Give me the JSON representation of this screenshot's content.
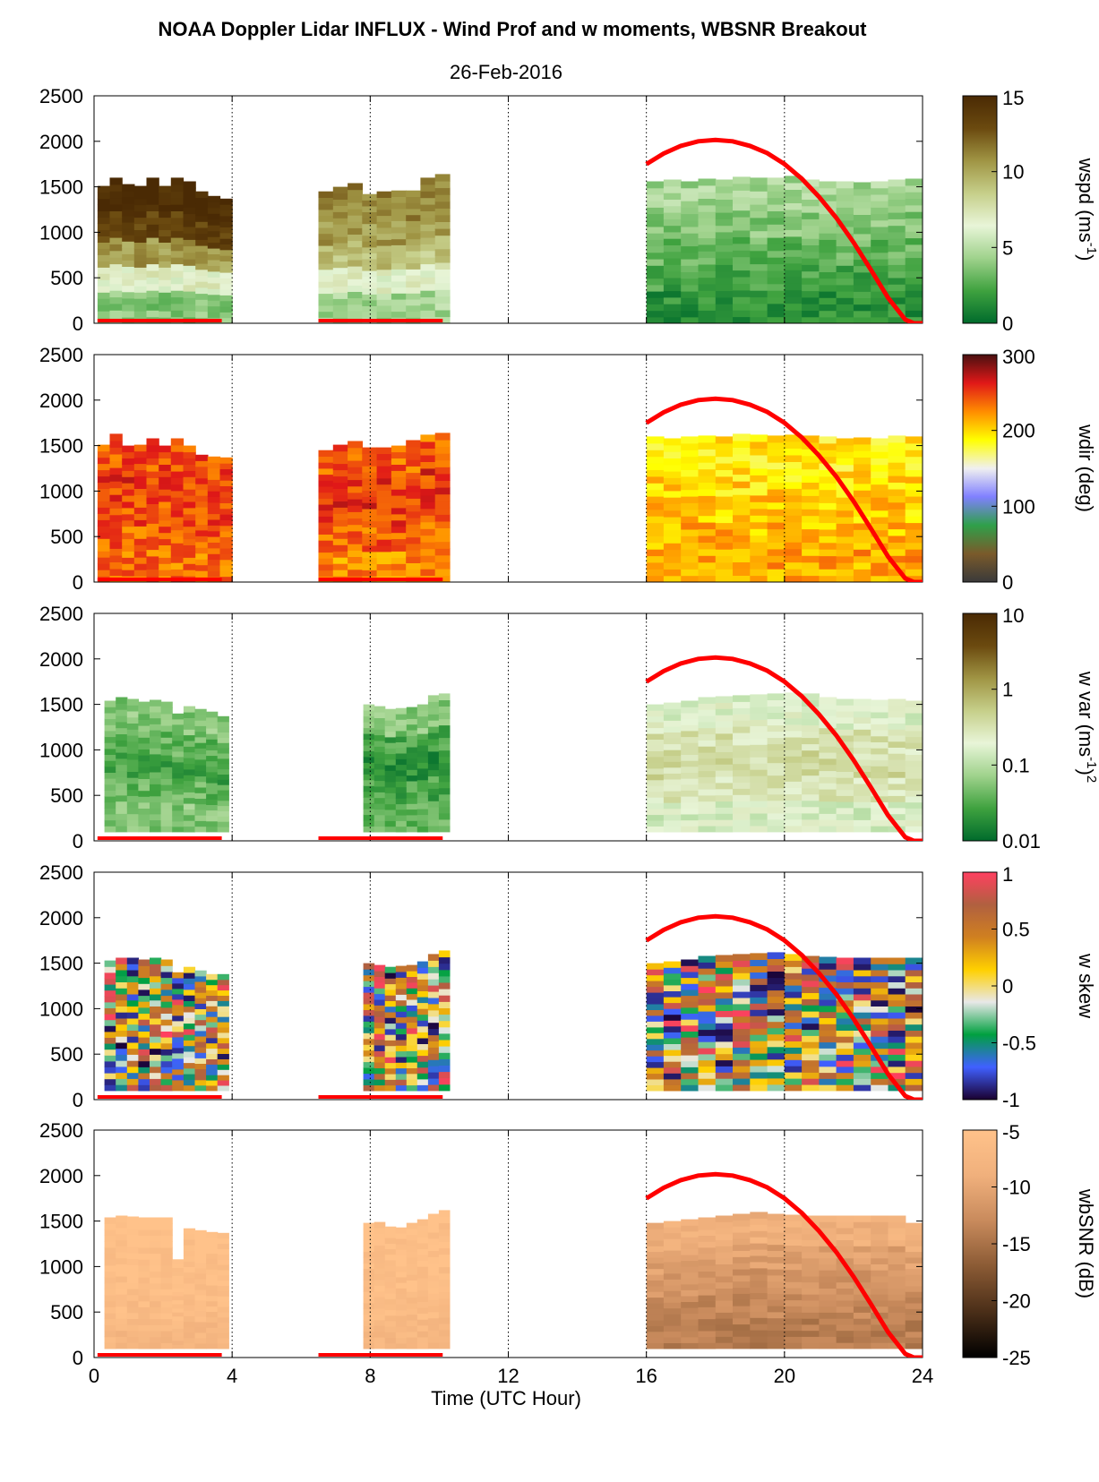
{
  "figure": {
    "title": "NOAA Doppler Lidar INFLUX - Wind Prof and w moments, WBSNR Breakout",
    "date": "26-Feb-2016",
    "xlabel": "Time (UTC Hour)"
  },
  "chart_data": {
    "type": "heatmap",
    "x_range": [
      0,
      24
    ],
    "x_ticks": [
      "0",
      "4",
      "8",
      "12",
      "16",
      "20",
      "24"
    ],
    "x_gridlines": [
      4,
      8,
      12,
      16,
      20
    ],
    "y_range": [
      0,
      2500
    ],
    "y_ticks": [
      "0",
      "500",
      "1000",
      "1500",
      "2000",
      "2500"
    ],
    "sunlight_curve": {
      "color": "#ff0000",
      "x": [
        16,
        16.5,
        17,
        17.5,
        18,
        18.5,
        19,
        19.5,
        20,
        20.5,
        21,
        21.5,
        22,
        22.5,
        23,
        23.5,
        23.75,
        24
      ],
      "y": [
        1750,
        1865,
        1950,
        2000,
        2015,
        2000,
        1950,
        1870,
        1750,
        1590,
        1390,
        1160,
        890,
        590,
        280,
        40,
        0,
        0
      ]
    },
    "data_availability": {
      "color": "#ff0000",
      "segments": [
        [
          0.1,
          3.7
        ],
        [
          6.5,
          10.1
        ]
      ],
      "y": 30
    },
    "panels": [
      {
        "variable": "wspd",
        "colorbar_label": "wspd (ms",
        "colorbar_label_sup": "-1",
        "colorbar_label_end": ")",
        "colorbar_ticks": [
          "0",
          "5",
          "10",
          "15"
        ],
        "colors": [
          "#006b2c",
          "#3fa23f",
          "#9fd28c",
          "#e8f5d8",
          "#c6cf8a",
          "#a09544",
          "#6b4a0f",
          "#4a2a04"
        ],
        "blocks": [
          {
            "x0": 0.1,
            "x1": 4.0,
            "tops": [
              1510,
              1600,
              1530,
              1510,
              1600,
              1510,
              1600,
              1560,
              1450,
              1400,
              1370
            ],
            "profile": [
              0.25,
              0.45,
              0.7,
              0.9,
              1.0
            ]
          },
          {
            "x0": 6.5,
            "x1": 10.3,
            "tops": [
              1450,
              1500,
              1540,
              1420,
              1450,
              1460,
              1460,
              1600,
              1640
            ],
            "profile": [
              0.3,
              0.45,
              0.6,
              0.7,
              0.75
            ]
          },
          {
            "x0": 16.0,
            "x1": 24.0,
            "tops": [
              1560,
              1580,
              1560,
              1590,
              1580,
              1610,
              1600,
              1600,
              1620,
              1580,
              1560,
              1560,
              1550,
              1560,
              1580,
              1590
            ],
            "profile": [
              0.1,
              0.15,
              0.2,
              0.25,
              0.3
            ]
          }
        ]
      },
      {
        "variable": "wdir",
        "colorbar_label": "wdir (deg)",
        "colorbar_ticks": [
          "0",
          "100",
          "200",
          "300"
        ],
        "colors": [
          "#3a3a3a",
          "#7a5a2a",
          "#2fa04a",
          "#8080ff",
          "#f0f0f0",
          "#ffff00",
          "#ff8c00",
          "#e01818",
          "#4a1010"
        ],
        "blocks": [
          {
            "x0": 0.1,
            "x1": 4.0,
            "tops": [
              1510,
              1630,
              1500,
              1510,
              1580,
              1500,
              1580,
              1500,
              1400,
              1380,
              1370
            ],
            "profile": [
              0.78,
              0.8,
              0.82,
              0.84,
              0.82
            ]
          },
          {
            "x0": 6.5,
            "x1": 10.3,
            "tops": [
              1450,
              1510,
              1550,
              1480,
              1480,
              1500,
              1560,
              1620,
              1640
            ],
            "profile": [
              0.75,
              0.8,
              0.84,
              0.84,
              0.8
            ]
          },
          {
            "x0": 16.0,
            "x1": 24.0,
            "tops": [
              1600,
              1580,
              1600,
              1610,
              1600,
              1630,
              1620,
              1610,
              1620,
              1610,
              1600,
              1580,
              1590,
              1580,
              1610,
              1600
            ],
            "profile": [
              0.72,
              0.7,
              0.68,
              0.66,
              0.64
            ]
          }
        ]
      },
      {
        "variable": "w var",
        "colorbar_label": "w var (ms",
        "colorbar_label_sup": "-1",
        "colorbar_label_end": ")",
        "colorbar_label_sup2": "2",
        "colorbar_ticks": [
          "0.01",
          "0.1",
          "1",
          "10"
        ],
        "colors": [
          "#006b2c",
          "#3fa23f",
          "#9fd28c",
          "#e8f5d8",
          "#c6cf8a",
          "#a09544",
          "#6b4a0f",
          "#4a2a04"
        ],
        "blocks": [
          {
            "x0": 0.3,
            "x1": 3.9,
            "tops": [
              1540,
              1580,
              1560,
              1530,
              1550,
              1530,
              1400,
              1480,
              1450,
              1420,
              1370
            ],
            "profile": [
              0.25,
              0.2,
              0.15,
              0.2,
              0.25
            ]
          },
          {
            "x0": 7.8,
            "x1": 10.3,
            "tops": [
              1500,
              1480,
              1450,
              1460,
              1470,
              1500,
              1600,
              1620
            ],
            "profile": [
              0.2,
              0.15,
              0.1,
              0.15,
              0.25
            ]
          },
          {
            "x0": 16.0,
            "x1": 24.0,
            "tops": [
              1500,
              1520,
              1540,
              1580,
              1590,
              1600,
              1610,
              1620,
              1630,
              1620,
              1580,
              1560,
              1560,
              1550,
              1560,
              1540
            ],
            "profile": [
              0.4,
              0.48,
              0.52,
              0.5,
              0.42
            ]
          }
        ]
      },
      {
        "variable": "w skew",
        "colorbar_label": "w skew",
        "colorbar_ticks": [
          "-1",
          "-0.5",
          "0",
          "0.5",
          "1"
        ],
        "colors": [
          "#1a0030",
          "#4060ff",
          "#00a040",
          "#e8e8e8",
          "#ffd000",
          "#d08020",
          "#b06040",
          "#ff4060"
        ],
        "blocks": [
          {
            "x0": 0.3,
            "x1": 3.9,
            "tops": [
              1530,
              1560,
              1560,
              1540,
              1560,
              1540,
              1400,
              1460,
              1420,
              1380,
              1380
            ],
            "profile": [
              0.5,
              0.5,
              0.5,
              0.5,
              0.5
            ]
          },
          {
            "x0": 7.8,
            "x1": 10.3,
            "tops": [
              1500,
              1480,
              1460,
              1470,
              1480,
              1520,
              1600,
              1640
            ],
            "profile": [
              0.5,
              0.5,
              0.5,
              0.5,
              0.5
            ]
          },
          {
            "x0": 16.0,
            "x1": 24.0,
            "tops": [
              1500,
              1520,
              1540,
              1580,
              1590,
              1600,
              1610,
              1620,
              1600,
              1580,
              1570,
              1560,
              1560,
              1560,
              1560,
              1560
            ],
            "profile": [
              0.5,
              0.5,
              0.5,
              0.5,
              0.5
            ]
          }
        ]
      },
      {
        "variable": "wbSNR",
        "colorbar_label": "wbSNR (dB)",
        "colorbar_ticks": [
          "-25",
          "-20",
          "-15",
          "-10",
          "-5"
        ],
        "colors": [
          "#000000",
          "#4a2e18",
          "#8a5a34",
          "#c88a5c",
          "#f0b07c",
          "#ffc28a"
        ],
        "blocks": [
          {
            "x0": 0.3,
            "x1": 3.9,
            "tops": [
              1540,
              1560,
              1550,
              1540,
              1540,
              1540,
              1080,
              1420,
              1400,
              1380,
              1370
            ],
            "profile": [
              0.88,
              0.93,
              0.96,
              0.97,
              0.98
            ]
          },
          {
            "x0": 7.8,
            "x1": 10.3,
            "tops": [
              1480,
              1490,
              1440,
              1430,
              1480,
              1520,
              1580,
              1620
            ],
            "profile": [
              0.88,
              0.92,
              0.95,
              0.96,
              0.97
            ]
          },
          {
            "x0": 16.0,
            "x1": 24.0,
            "tops": [
              1480,
              1500,
              1520,
              1540,
              1560,
              1580,
              1600,
              1580,
              1570,
              1560,
              1560,
              1560,
              1560,
              1560,
              1560,
              1480
            ],
            "profile": [
              0.55,
              0.6,
              0.65,
              0.72,
              0.82
            ]
          }
        ]
      }
    ]
  }
}
